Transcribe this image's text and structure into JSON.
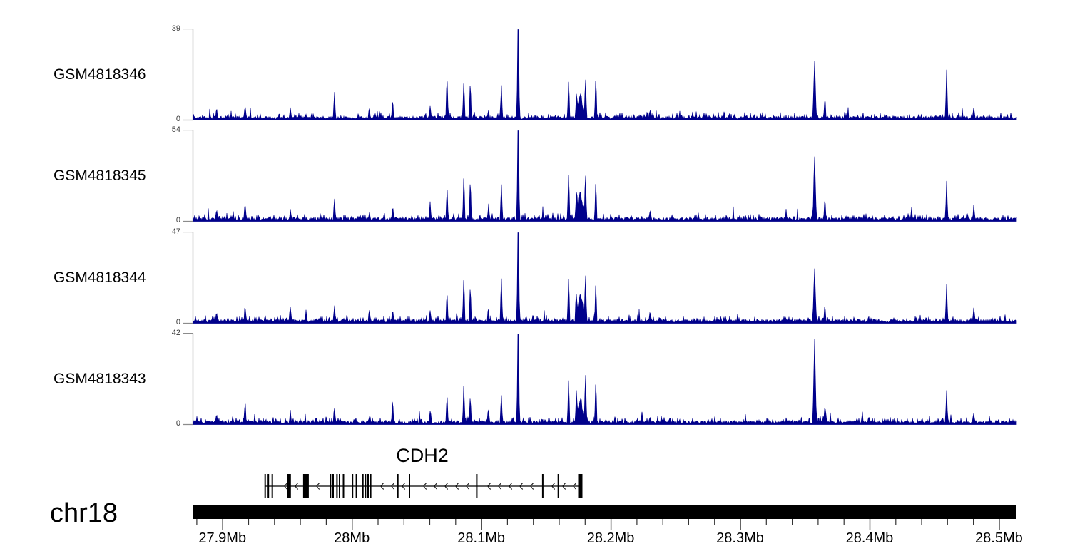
{
  "tracks": [
    {
      "label": "GSM4818346",
      "ymax_label": "39",
      "ymin_label": "0",
      "seed": 41346
    },
    {
      "label": "GSM4818345",
      "ymax_label": "54",
      "ymin_label": "0",
      "seed": 41345
    },
    {
      "label": "GSM4818344",
      "ymax_label": "47",
      "ymin_label": "0",
      "seed": 41344
    },
    {
      "label": "GSM4818343",
      "ymax_label": "42",
      "ymin_label": "0",
      "seed": 41343
    }
  ],
  "gene_track": {
    "gene_name": "CDH2",
    "strand": "-",
    "span_mb": [
      27.9325,
      28.176
    ],
    "exons_mb": [
      {
        "mb": 27.9325
      },
      {
        "mb": 27.935
      },
      {
        "mb": 27.938
      },
      {
        "mb": 27.951,
        "w": 5
      },
      {
        "mb": 27.964,
        "w": 8
      },
      {
        "mb": 27.983
      },
      {
        "mb": 27.985
      },
      {
        "mb": 27.988
      },
      {
        "mb": 27.99
      },
      {
        "mb": 27.993
      },
      {
        "mb": 28.0
      },
      {
        "mb": 28.003
      },
      {
        "mb": 28.008
      },
      {
        "mb": 28.01
      },
      {
        "mb": 28.012
      },
      {
        "mb": 28.014
      },
      {
        "mb": 28.035
      },
      {
        "mb": 28.044
      },
      {
        "mb": 28.096
      },
      {
        "mb": 28.147
      },
      {
        "mb": 28.159
      },
      {
        "mb": 28.176,
        "w": 6
      }
    ]
  },
  "chromosome": {
    "label": "chr18"
  },
  "chart_data": {
    "type": "area",
    "title": "",
    "x_axis": {
      "unit": "Mb",
      "chromosome": "chr18",
      "range_mb": [
        27.877,
        28.513
      ],
      "major_ticks": [
        {
          "mb": 27.9,
          "label": "27.9Mb"
        },
        {
          "mb": 28.0,
          "label": "28Mb"
        },
        {
          "mb": 28.1,
          "label": "28.1Mb"
        },
        {
          "mb": 28.2,
          "label": "28.2Mb"
        },
        {
          "mb": 28.3,
          "label": "28.3Mb"
        },
        {
          "mb": 28.4,
          "label": "28.4Mb"
        },
        {
          "mb": 28.5,
          "label": "28.5Mb"
        }
      ],
      "minor_tick_step_mb": 0.02
    },
    "series": [
      {
        "name": "GSM4818346",
        "ymin": 0,
        "ymax": 39
      },
      {
        "name": "GSM4818345",
        "ymin": 0,
        "ymax": 54
      },
      {
        "name": "GSM4818344",
        "ymin": 0,
        "ymax": 47
      },
      {
        "name": "GSM4818343",
        "ymin": 0,
        "ymax": 42
      }
    ],
    "shared_peaks": [
      {
        "mb": 27.895,
        "h": 0.1
      },
      {
        "mb": 27.917,
        "h": 0.2
      },
      {
        "mb": 27.952,
        "h": 0.12
      },
      {
        "mb": 27.986,
        "h": 0.22
      },
      {
        "mb": 28.013,
        "h": 0.1
      },
      {
        "mb": 28.031,
        "h": 0.2
      },
      {
        "mb": 28.06,
        "h": 0.12
      },
      {
        "mb": 28.073,
        "h": 0.42
      },
      {
        "mb": 28.086,
        "h": 0.5
      },
      {
        "mb": 28.091,
        "h": 0.36
      },
      {
        "mb": 28.105,
        "h": 0.15
      },
      {
        "mb": 28.115,
        "h": 0.4
      },
      {
        "mb": 28.128,
        "h": 1.0,
        "w": 2,
        "main": true
      },
      {
        "mb": 28.167,
        "h": 0.46
      },
      {
        "mb": 28.173,
        "h": 0.34
      },
      {
        "mb": 28.176,
        "h": 0.3,
        "w": 6
      },
      {
        "mb": 28.18,
        "h": 0.46
      },
      {
        "mb": 28.188,
        "h": 0.5
      },
      {
        "mb": 28.23,
        "h": 0.1
      },
      {
        "mb": 28.357,
        "h": 0.8,
        "w": 2.5
      },
      {
        "mb": 28.365,
        "h": 0.22
      },
      {
        "mb": 28.459,
        "h": 0.44
      },
      {
        "mb": 28.48,
        "h": 0.12
      }
    ],
    "signal_model": {
      "baseline_frac_range": [
        0.01,
        0.045
      ],
      "noise_spike_frac_max": 0.2
    }
  },
  "colors": {
    "signal": "#00008b",
    "axis_line": "#8c8c8c",
    "ideogram": "#000000",
    "gene": "#000000",
    "y_label_text": "#3a3a3a",
    "text": "#000000"
  }
}
